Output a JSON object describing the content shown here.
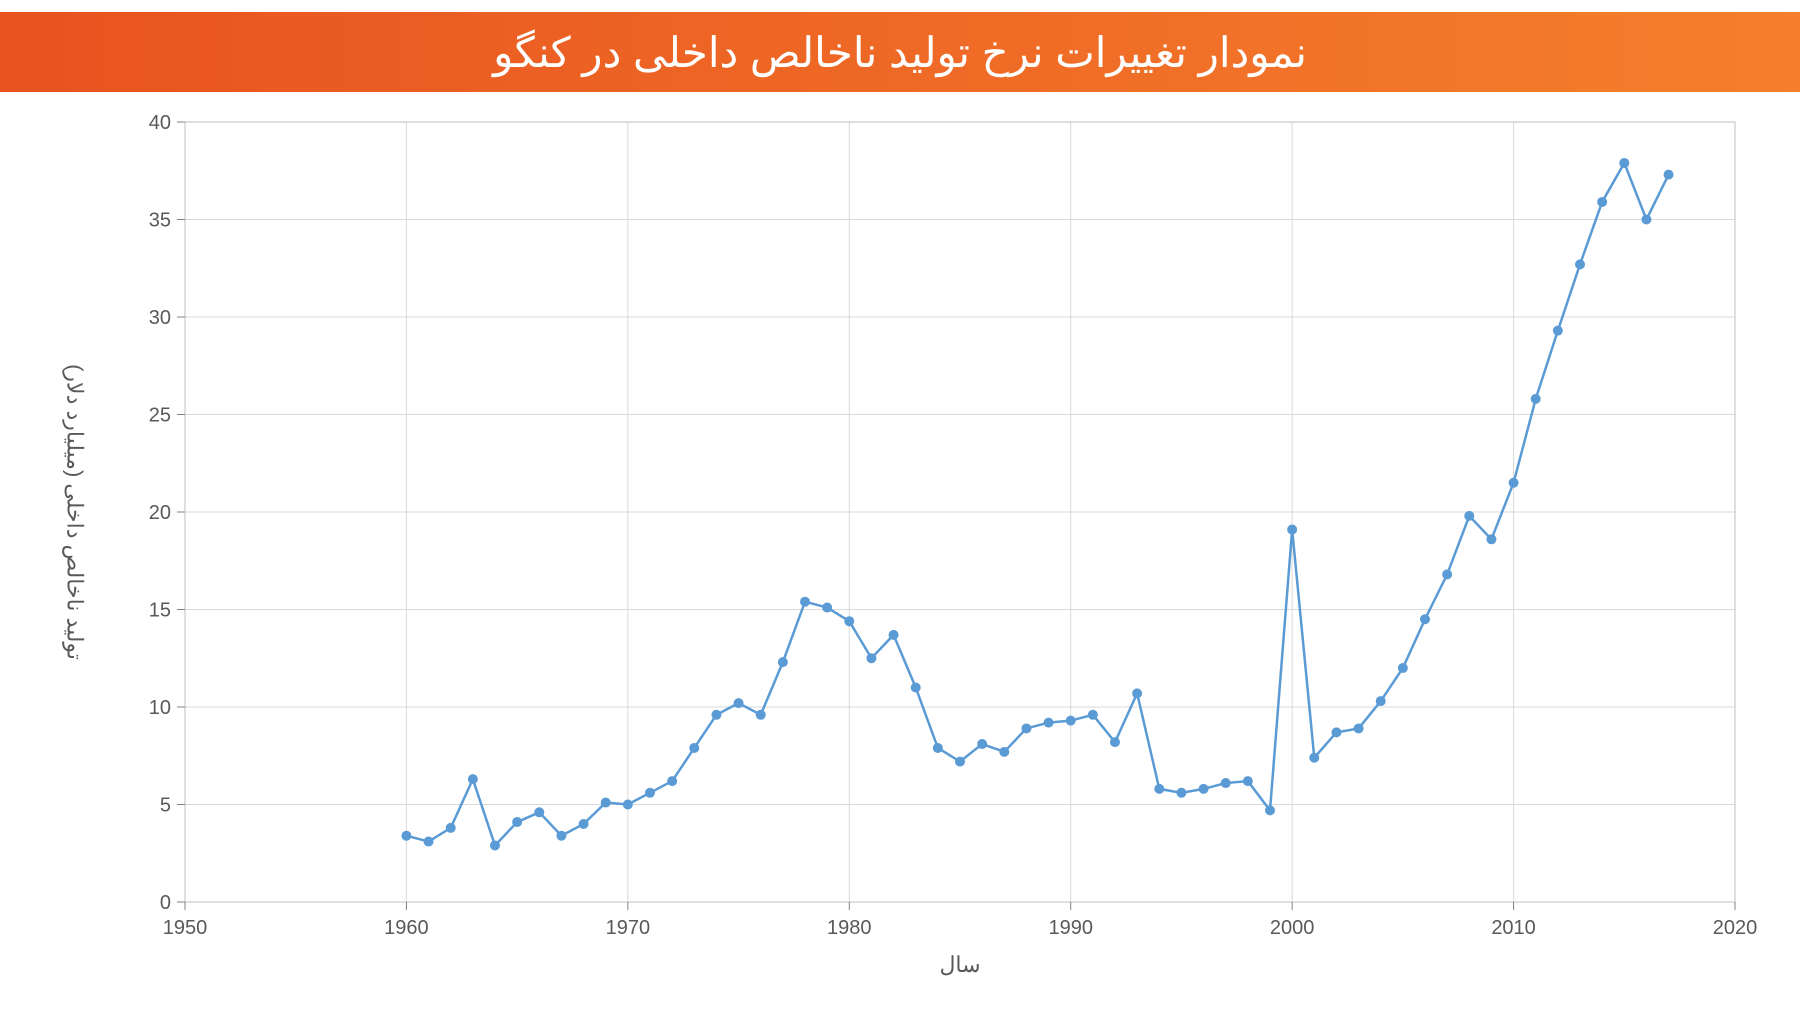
{
  "banner": {
    "title": "نمودار تغییرات نرخ تولید ناخالص داخلی در کنگو",
    "gradient_from": "#e8531f",
    "gradient_to": "#f57f2c",
    "text_color": "#ffffff",
    "title_fontsize": 42
  },
  "chart": {
    "type": "line",
    "background_color": "#ffffff",
    "plot_border_color": "#bfbfbf",
    "grid_color": "#d9d9d9",
    "tick_color": "#808080",
    "line_color": "#5b9bd5",
    "marker_color": "#5b9bd5",
    "line_width": 2.5,
    "marker_radius": 5,
    "xlabel": "سال",
    "ylabel": "تولید ناخالص داخلی (میلیارد دلار)",
    "label_fontsize": 22,
    "tick_fontsize": 20,
    "tick_label_color": "#595959",
    "xlim": [
      1950,
      2020
    ],
    "xtick_step": 10,
    "xticks": [
      1950,
      1960,
      1970,
      1980,
      1990,
      2000,
      2010,
      2020
    ],
    "ylim": [
      0,
      40
    ],
    "ytick_step": 5,
    "yticks": [
      0,
      5,
      10,
      15,
      20,
      25,
      30,
      35,
      40
    ],
    "points": [
      {
        "x": 1960,
        "y": 3.4
      },
      {
        "x": 1961,
        "y": 3.1
      },
      {
        "x": 1962,
        "y": 3.8
      },
      {
        "x": 1963,
        "y": 6.3
      },
      {
        "x": 1964,
        "y": 2.9
      },
      {
        "x": 1965,
        "y": 4.1
      },
      {
        "x": 1966,
        "y": 4.6
      },
      {
        "x": 1967,
        "y": 3.4
      },
      {
        "x": 1968,
        "y": 4.0
      },
      {
        "x": 1969,
        "y": 5.1
      },
      {
        "x": 1970,
        "y": 5.0
      },
      {
        "x": 1971,
        "y": 5.6
      },
      {
        "x": 1972,
        "y": 6.2
      },
      {
        "x": 1973,
        "y": 7.9
      },
      {
        "x": 1974,
        "y": 9.6
      },
      {
        "x": 1975,
        "y": 10.2
      },
      {
        "x": 1976,
        "y": 9.6
      },
      {
        "x": 1977,
        "y": 12.3
      },
      {
        "x": 1978,
        "y": 15.4
      },
      {
        "x": 1979,
        "y": 15.1
      },
      {
        "x": 1980,
        "y": 14.4
      },
      {
        "x": 1981,
        "y": 12.5
      },
      {
        "x": 1982,
        "y": 13.7
      },
      {
        "x": 1983,
        "y": 11.0
      },
      {
        "x": 1984,
        "y": 7.9
      },
      {
        "x": 1985,
        "y": 7.2
      },
      {
        "x": 1986,
        "y": 8.1
      },
      {
        "x": 1987,
        "y": 7.7
      },
      {
        "x": 1988,
        "y": 8.9
      },
      {
        "x": 1989,
        "y": 9.2
      },
      {
        "x": 1990,
        "y": 9.3
      },
      {
        "x": 1991,
        "y": 9.6
      },
      {
        "x": 1992,
        "y": 8.2
      },
      {
        "x": 1993,
        "y": 10.7
      },
      {
        "x": 1994,
        "y": 5.8
      },
      {
        "x": 1995,
        "y": 5.6
      },
      {
        "x": 1996,
        "y": 5.8
      },
      {
        "x": 1997,
        "y": 6.1
      },
      {
        "x": 1998,
        "y": 6.2
      },
      {
        "x": 1999,
        "y": 4.7
      },
      {
        "x": 2000,
        "y": 19.1
      },
      {
        "x": 2001,
        "y": 7.4
      },
      {
        "x": 2002,
        "y": 8.7
      },
      {
        "x": 2003,
        "y": 8.9
      },
      {
        "x": 2004,
        "y": 10.3
      },
      {
        "x": 2005,
        "y": 12.0
      },
      {
        "x": 2006,
        "y": 14.5
      },
      {
        "x": 2007,
        "y": 16.8
      },
      {
        "x": 2008,
        "y": 19.8
      },
      {
        "x": 2009,
        "y": 18.6
      },
      {
        "x": 2010,
        "y": 21.5
      },
      {
        "x": 2011,
        "y": 25.8
      },
      {
        "x": 2012,
        "y": 29.3
      },
      {
        "x": 2013,
        "y": 32.7
      },
      {
        "x": 2014,
        "y": 35.9
      },
      {
        "x": 2015,
        "y": 37.9
      },
      {
        "x": 2016,
        "y": 35.0
      },
      {
        "x": 2017,
        "y": 37.3
      }
    ]
  }
}
